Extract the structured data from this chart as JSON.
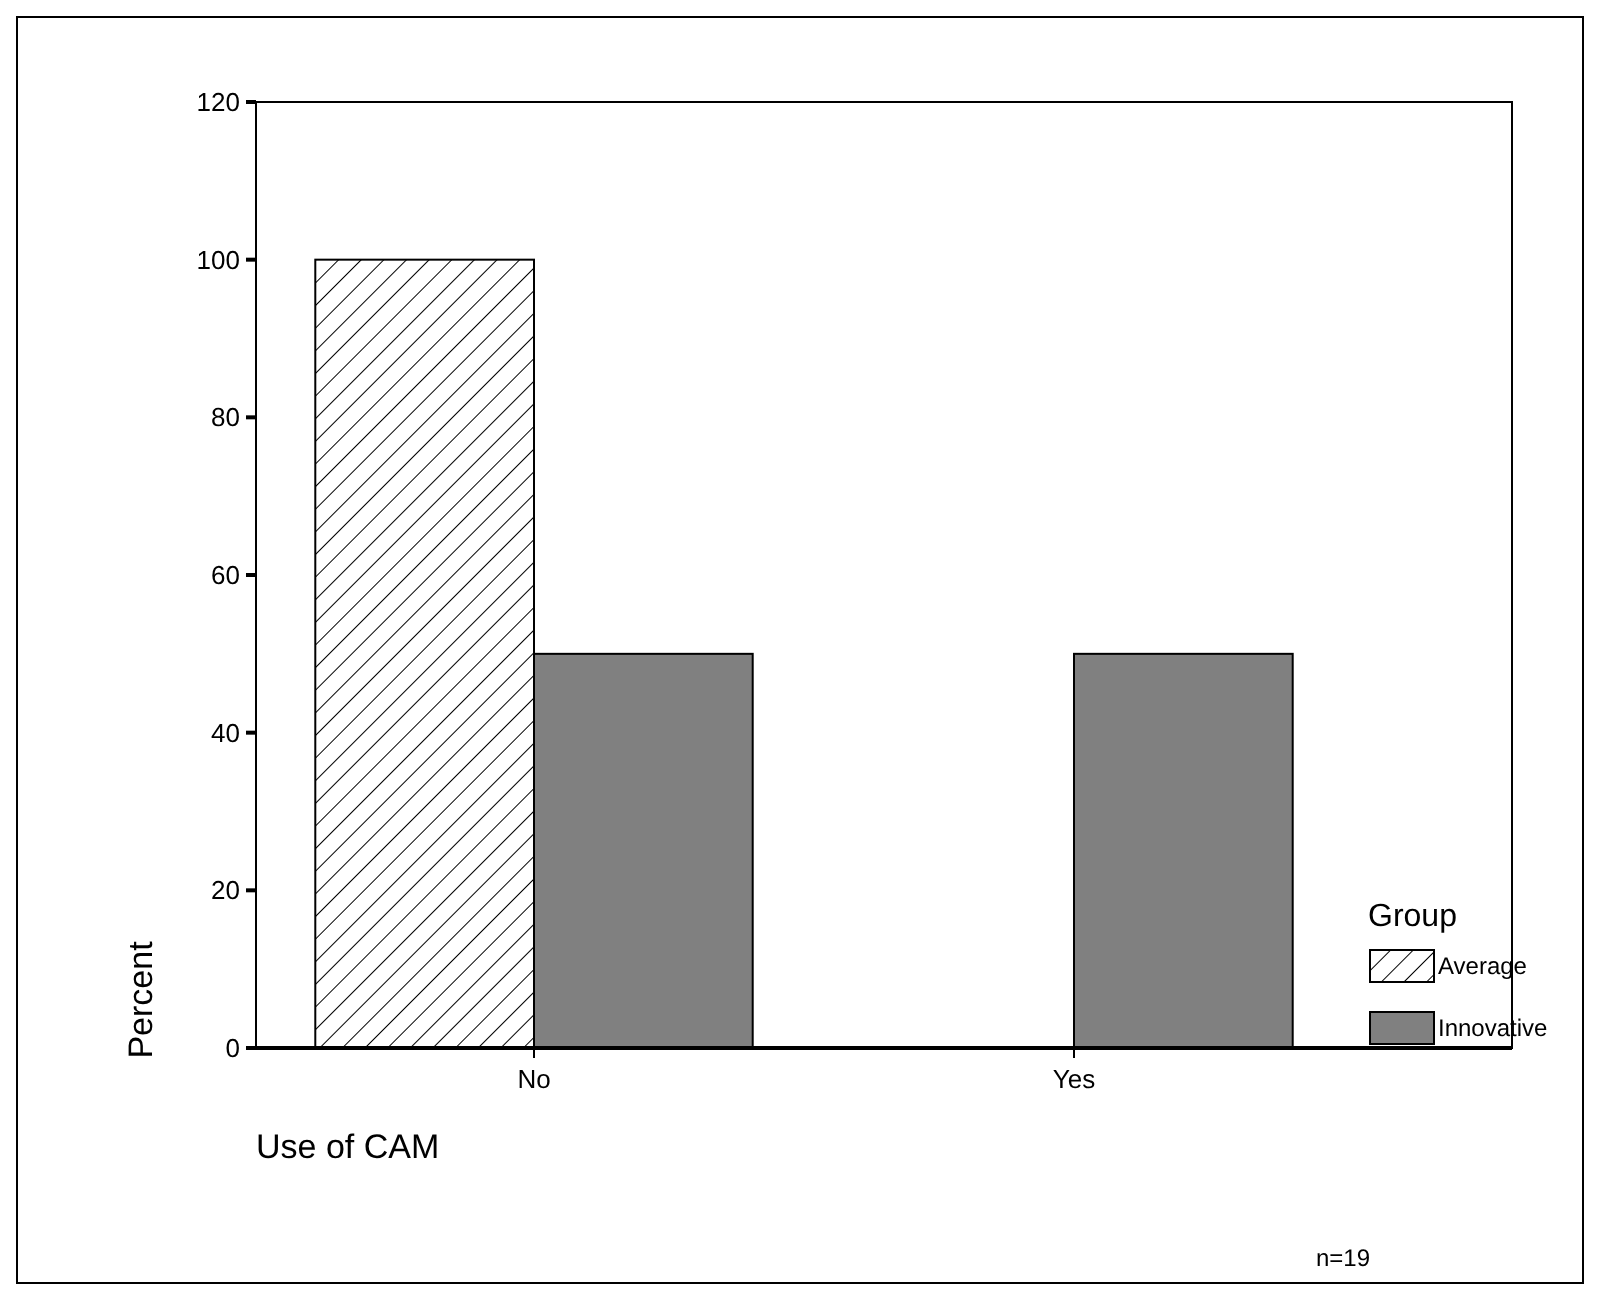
{
  "chart_data": {
    "type": "bar",
    "xlabel": "Use of CAM",
    "ylabel": "Percent",
    "legend_title": "Group",
    "categories": [
      "No",
      "Yes"
    ],
    "series": [
      {
        "name": "Average",
        "color": "#000000",
        "values": [
          100,
          0
        ]
      },
      {
        "name": "Innovative",
        "color": "#808080",
        "values": [
          50,
          50
        ]
      }
    ],
    "ylim": [
      0,
      120
    ],
    "yticks": [
      0,
      20,
      40,
      60,
      80,
      100,
      120
    ],
    "grid": false,
    "legend": "right",
    "annotations": [
      "n=19"
    ]
  }
}
